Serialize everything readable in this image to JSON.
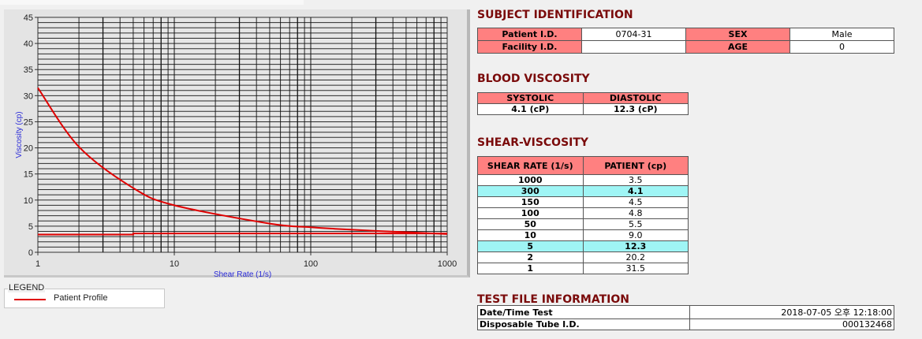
{
  "chart_data": {
    "type": "line",
    "xlabel": "Shear Rate (1/s)",
    "ylabel": "Viscosity (cp)",
    "xscale": "log",
    "xlim": [
      1,
      1000
    ],
    "ylim": [
      0,
      45
    ],
    "xticks": [
      "1",
      "10",
      "100",
      "1000"
    ],
    "yticks": [
      "0",
      "5",
      "10",
      "15",
      "20",
      "25",
      "30",
      "35",
      "40",
      "45"
    ],
    "grid": true,
    "legend_position": "below-left",
    "series": [
      {
        "name": "Patient Profile",
        "color": "#e00000",
        "x": [
          1,
          2,
          5,
          10,
          50,
          100,
          150,
          300,
          1000
        ],
        "y": [
          31.5,
          20.2,
          12.3,
          9.0,
          5.5,
          4.8,
          4.5,
          4.1,
          3.5
        ]
      },
      {
        "color": "#e00000",
        "x": [
          1,
          5,
          5,
          1000
        ],
        "y": [
          3.4,
          3.4,
          3.6,
          3.6
        ]
      }
    ]
  },
  "legend": {
    "title": "LEGEND",
    "items": [
      "Patient Profile"
    ]
  },
  "subject": {
    "title": "SUBJECT IDENTIFICATION",
    "patient_id_label": "Patient I.D.",
    "patient_id": "0704-31",
    "sex_label": "SEX",
    "sex": "Male",
    "facility_id_label": "Facility I.D.",
    "facility_id": "",
    "age_label": "AGE",
    "age": "0"
  },
  "blood_viscosity": {
    "title": "BLOOD VISCOSITY",
    "systolic_label": "SYSTOLIC",
    "systolic": "4.1 (cP)",
    "diastolic_label": "DIASTOLIC",
    "diastolic": "12.3 (cP)"
  },
  "shear_viscosity": {
    "title": "SHEAR-VISCOSITY",
    "headers": [
      "SHEAR RATE (1/s)",
      "PATIENT (cp)"
    ],
    "highlight_color": "#9ff5f5",
    "rows": [
      {
        "rate": "1000",
        "patient": "3.5",
        "highlight": false
      },
      {
        "rate": "300",
        "patient": "4.1",
        "highlight": true
      },
      {
        "rate": "150",
        "patient": "4.5",
        "highlight": false
      },
      {
        "rate": "100",
        "patient": "4.8",
        "highlight": false
      },
      {
        "rate": "50",
        "patient": "5.5",
        "highlight": false
      },
      {
        "rate": "10",
        "patient": "9.0",
        "highlight": false
      },
      {
        "rate": "5",
        "patient": "12.3",
        "highlight": true
      },
      {
        "rate": "2",
        "patient": "20.2",
        "highlight": false
      },
      {
        "rate": "1",
        "patient": "31.5",
        "highlight": false
      }
    ]
  },
  "test_file": {
    "title": "TEST FILE INFORMATION",
    "date_label": "Date/Time Test",
    "date": "2018-07-05  오후 12:18:00",
    "tube_label": "Disposable Tube I.D.",
    "tube": "000132468"
  },
  "colors": {
    "header_pink": "#ff8080",
    "title_red": "#7a0a0a",
    "curve": "#e00000"
  }
}
